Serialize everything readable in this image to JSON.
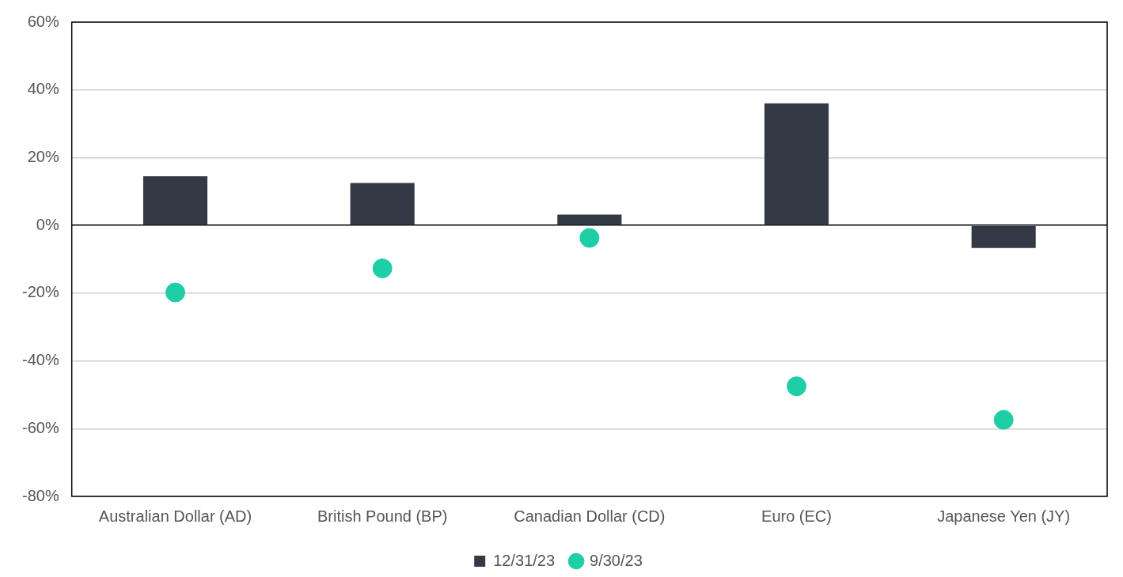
{
  "chart_data": {
    "type": "bar",
    "categories": [
      "Australian Dollar (AD)",
      "British Pound (BP)",
      "Canadian Dollar (CD)",
      "Euro (EC)",
      "Japanese Yen (JY)"
    ],
    "series": [
      {
        "name": "12/31/23",
        "color": "#333a46",
        "values": [
          14.5,
          12.5,
          3.2,
          36,
          -6.7
        ]
      },
      {
        "name": "9/30/23",
        "type": "scatter",
        "color": "#1ecfa6",
        "x": [
          "Australian Dollar (AD)",
          "British Pound (BP)",
          "Canadian Dollar (CD)",
          "Euro (EC)",
          "Japanese Yen (JY)"
        ],
        "values": [
          -19.8,
          -12.7,
          -3.7,
          -47.5,
          -57.4
        ]
      }
    ],
    "ylim": [
      -80,
      60
    ],
    "yticks": [
      {
        "value": -80,
        "label": "-80%"
      },
      {
        "value": -60,
        "label": "-60%"
      },
      {
        "value": -40,
        "label": "-40%"
      },
      {
        "value": -20,
        "label": "-20%"
      },
      {
        "value": 0,
        "label": "0%"
      },
      {
        "value": 20,
        "label": "20%"
      },
      {
        "value": 40,
        "label": "40%"
      },
      {
        "value": 60,
        "label": "60%"
      }
    ],
    "grid": "y",
    "legend": "bottom",
    "marker": "circle"
  }
}
